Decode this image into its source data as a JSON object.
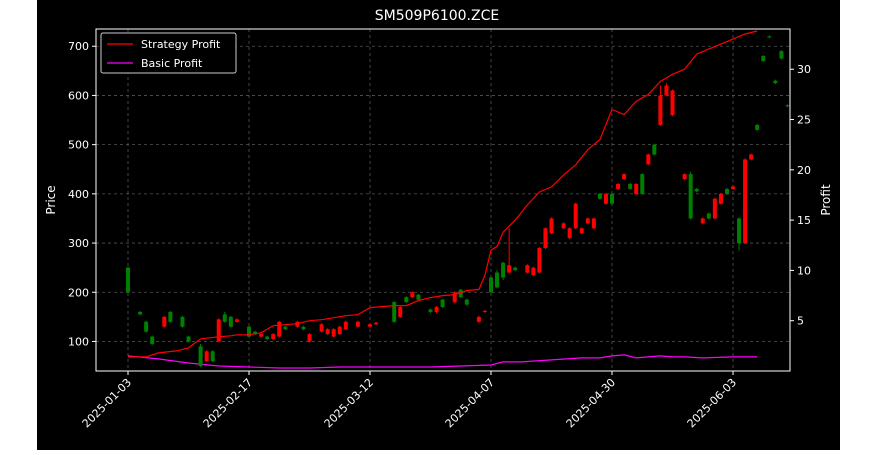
{
  "chart_data": {
    "type": "candlestick",
    "title": "SM509P6100.ZCE",
    "xlabel": "",
    "ylabel": "Price",
    "y2label": "Profit",
    "ylim": [
      40,
      735
    ],
    "y2lim": [
      0,
      34
    ],
    "yticks": [
      100,
      200,
      300,
      400,
      500,
      600,
      700
    ],
    "y2ticks": [
      5,
      10,
      15,
      20,
      25,
      30
    ],
    "xticks": [
      "2025-01-03",
      "2025-02-17",
      "2025-03-12",
      "2025-04-07",
      "2025-04-30",
      "2025-06-03"
    ],
    "xtick_index": [
      0,
      20,
      40,
      60,
      80,
      100
    ],
    "n_bars": 104,
    "grid": true,
    "legend_position": "top-left",
    "colors": {
      "up": "#ff0000",
      "down": "#008000",
      "strategy": "#ff0000",
      "basic": "#ff00ff",
      "background": "#000000"
    },
    "series": [
      {
        "name": "Strategy Profit",
        "axis": "right",
        "x": [
          0,
          3,
          5,
          8,
          10,
          12,
          15,
          17,
          18,
          20,
          22,
          24,
          26,
          28,
          30,
          32,
          34,
          36,
          38,
          40,
          42,
          44,
          46,
          48,
          50,
          52,
          54,
          56,
          58,
          59,
          60,
          61,
          62,
          64,
          66,
          68,
          70,
          72,
          74,
          76,
          78,
          80,
          82,
          84,
          86,
          88,
          90,
          92,
          94,
          96,
          98,
          100,
          102,
          104
        ],
        "values": [
          1.4,
          1.4,
          1.8,
          2.0,
          2.3,
          3.2,
          3.4,
          3.5,
          3.6,
          3.6,
          3.8,
          4.5,
          4.6,
          4.7,
          5.0,
          5.1,
          5.3,
          5.5,
          5.6,
          6.3,
          6.4,
          6.5,
          6.5,
          7.0,
          7.3,
          7.5,
          7.6,
          8.0,
          8.1,
          9.5,
          12.0,
          12.4,
          13.8,
          15.0,
          16.5,
          17.8,
          18.3,
          19.5,
          20.5,
          22.0,
          23.0,
          26.0,
          25.5,
          26.8,
          27.5,
          28.8,
          29.5,
          30.0,
          31.5,
          32.0,
          32.5,
          33.0,
          33.5,
          33.8
        ]
      },
      {
        "name": "Basic Profit",
        "axis": "right",
        "x": [
          0,
          5,
          10,
          15,
          20,
          25,
          30,
          35,
          40,
          45,
          50,
          55,
          60,
          62,
          65,
          70,
          75,
          78,
          80,
          82,
          84,
          86,
          88,
          90,
          92,
          95,
          100,
          104
        ],
        "values": [
          1.5,
          1.2,
          0.8,
          0.5,
          0.4,
          0.3,
          0.3,
          0.4,
          0.4,
          0.4,
          0.4,
          0.5,
          0.6,
          0.9,
          0.9,
          1.1,
          1.3,
          1.3,
          1.5,
          1.6,
          1.3,
          1.4,
          1.5,
          1.4,
          1.4,
          1.3,
          1.4,
          1.4
        ]
      }
    ],
    "candles": [
      [
        0,
        250,
        200,
        252,
        198
      ],
      [
        2,
        160,
        155,
        162,
        153
      ],
      [
        3,
        140,
        120,
        142,
        118
      ],
      [
        4,
        110,
        95,
        112,
        93
      ],
      [
        6,
        130,
        150,
        152,
        128
      ],
      [
        7,
        160,
        140,
        162,
        138
      ],
      [
        9,
        150,
        130,
        152,
        128
      ],
      [
        10,
        110,
        100,
        112,
        98
      ],
      [
        12,
        90,
        50,
        95,
        48
      ],
      [
        13,
        60,
        80,
        82,
        58
      ],
      [
        14,
        80,
        60,
        82,
        58
      ],
      [
        15,
        100,
        145,
        147,
        98
      ],
      [
        16,
        155,
        140,
        160,
        138
      ],
      [
        17,
        150,
        130,
        152,
        128
      ],
      [
        18,
        140,
        145,
        147,
        138
      ],
      [
        20,
        130,
        110,
        132,
        108
      ],
      [
        21,
        120,
        115,
        122,
        113
      ],
      [
        22,
        110,
        115,
        117,
        108
      ],
      [
        23,
        110,
        105,
        112,
        103
      ],
      [
        24,
        105,
        115,
        117,
        103
      ],
      [
        25,
        110,
        140,
        142,
        108
      ],
      [
        26,
        130,
        125,
        132,
        123
      ],
      [
        28,
        130,
        140,
        142,
        128
      ],
      [
        29,
        130,
        125,
        132,
        123
      ],
      [
        30,
        100,
        115,
        117,
        98
      ],
      [
        32,
        120,
        135,
        137,
        118
      ],
      [
        33,
        115,
        125,
        127,
        113
      ],
      [
        34,
        110,
        125,
        127,
        108
      ],
      [
        35,
        115,
        130,
        132,
        113
      ],
      [
        36,
        125,
        140,
        142,
        123
      ],
      [
        38,
        130,
        140,
        142,
        128
      ],
      [
        40,
        130,
        135,
        137,
        128
      ],
      [
        41,
        135,
        138,
        140,
        133
      ],
      [
        44,
        180,
        140,
        182,
        138
      ],
      [
        45,
        150,
        170,
        172,
        148
      ],
      [
        46,
        190,
        180,
        192,
        178
      ],
      [
        47,
        190,
        200,
        202,
        188
      ],
      [
        48,
        195,
        185,
        197,
        183
      ],
      [
        50,
        165,
        160,
        167,
        158
      ],
      [
        51,
        160,
        170,
        172,
        158
      ],
      [
        52,
        185,
        170,
        187,
        168
      ],
      [
        54,
        180,
        200,
        202,
        178
      ],
      [
        55,
        205,
        190,
        207,
        188
      ],
      [
        56,
        185,
        175,
        187,
        173
      ],
      [
        58,
        140,
        150,
        152,
        138
      ],
      [
        59,
        160,
        162,
        164,
        158
      ],
      [
        60,
        230,
        200,
        232,
        198
      ],
      [
        61,
        240,
        210,
        245,
        208
      ],
      [
        62,
        260,
        230,
        262,
        225
      ],
      [
        63,
        240,
        255,
        330,
        238
      ],
      [
        64,
        250,
        245,
        252,
        243
      ],
      [
        66,
        240,
        255,
        257,
        238
      ],
      [
        67,
        235,
        250,
        252,
        233
      ],
      [
        68,
        240,
        290,
        292,
        238
      ],
      [
        69,
        290,
        330,
        332,
        288
      ],
      [
        70,
        320,
        350,
        352,
        318
      ],
      [
        72,
        330,
        340,
        342,
        328
      ],
      [
        73,
        310,
        330,
        332,
        308
      ],
      [
        74,
        330,
        380,
        382,
        328
      ],
      [
        75,
        320,
        330,
        332,
        318
      ],
      [
        76,
        340,
        350,
        352,
        338
      ],
      [
        77,
        330,
        350,
        352,
        328
      ],
      [
        78,
        400,
        390,
        402,
        388
      ],
      [
        79,
        380,
        400,
        402,
        378
      ],
      [
        80,
        400,
        380,
        402,
        378
      ],
      [
        81,
        410,
        420,
        422,
        408
      ],
      [
        82,
        430,
        440,
        442,
        428
      ],
      [
        83,
        420,
        410,
        422,
        408
      ],
      [
        84,
        400,
        420,
        422,
        398
      ],
      [
        85,
        440,
        400,
        442,
        398
      ],
      [
        86,
        460,
        480,
        482,
        458
      ],
      [
        87,
        500,
        480,
        502,
        478
      ],
      [
        88,
        540,
        600,
        620,
        538
      ],
      [
        89,
        600,
        620,
        625,
        598
      ],
      [
        90,
        560,
        610,
        612,
        558
      ],
      [
        92,
        430,
        440,
        442,
        428
      ],
      [
        93,
        440,
        350,
        445,
        348
      ],
      [
        94,
        410,
        405,
        412,
        403
      ],
      [
        95,
        340,
        350,
        352,
        338
      ],
      [
        96,
        360,
        350,
        362,
        348
      ],
      [
        97,
        350,
        390,
        392,
        348
      ],
      [
        98,
        380,
        400,
        402,
        378
      ],
      [
        99,
        410,
        400,
        412,
        398
      ],
      [
        100,
        410,
        415,
        417,
        408
      ],
      [
        101,
        350,
        300,
        352,
        285
      ],
      [
        102,
        300,
        470,
        472,
        298
      ],
      [
        103,
        470,
        480,
        482,
        468
      ],
      [
        104,
        540,
        530,
        542,
        528
      ],
      [
        105,
        680,
        670,
        682,
        668
      ],
      [
        106,
        720,
        718,
        722,
        716
      ],
      [
        107,
        630,
        625,
        632,
        623
      ],
      [
        108,
        690,
        675,
        692,
        673
      ],
      [
        109,
        580,
        578,
        582,
        576
      ]
    ]
  }
}
